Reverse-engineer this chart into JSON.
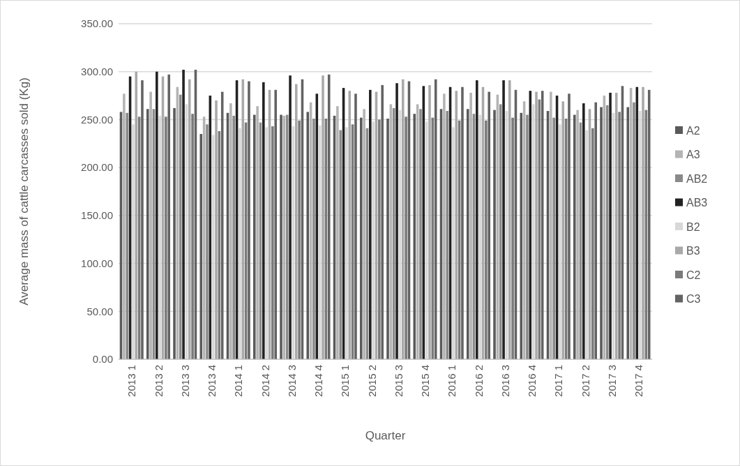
{
  "chart_data": {
    "type": "bar",
    "xlabel": "Quarter",
    "ylabel": "Average mass of cattle carcasses sold (Kg)",
    "categories": [
      "2013 1",
      "2013 2",
      "2013 3",
      "2013 4",
      "2014 1",
      "2014 2",
      "2014 3",
      "2014 4",
      "2015 1",
      "2015 2",
      "2015 3",
      "2015 4",
      "2016 1",
      "2016 2",
      "2016 3",
      "2016 4",
      "2017 1",
      "2017 2",
      "2017 3",
      "2017 4"
    ],
    "series": [
      {
        "name": "A2",
        "color": "#5a5a5a",
        "values": [
          258,
          261,
          262,
          235,
          257,
          255,
          255,
          258,
          254,
          252,
          251,
          256,
          261,
          261,
          260,
          257,
          259,
          255,
          263,
          263
        ]
      },
      {
        "name": "A3",
        "color": "#b4b4b4",
        "values": [
          277,
          279,
          284,
          253,
          267,
          264,
          254,
          268,
          264,
          261,
          266,
          266,
          277,
          278,
          276,
          269,
          279,
          260,
          275,
          283
        ]
      },
      {
        "name": "AB2",
        "color": "#8a8a8a",
        "values": [
          257,
          261,
          276,
          245,
          254,
          247,
          255,
          251,
          239,
          241,
          262,
          261,
          259,
          256,
          266,
          255,
          252,
          247,
          265,
          268
        ]
      },
      {
        "name": "AB3",
        "color": "#222222",
        "values": [
          295,
          300,
          302,
          275,
          291,
          289,
          296,
          277,
          283,
          281,
          288,
          285,
          284,
          291,
          291,
          280,
          275,
          267,
          278,
          284
        ]
      },
      {
        "name": "B2",
        "color": "#d8d8d8",
        "values": [
          245,
          254,
          266,
          234,
          241,
          242,
          243,
          244,
          242,
          248,
          260,
          248,
          242,
          255,
          259,
          266,
          245,
          239,
          257,
          259
        ]
      },
      {
        "name": "B3",
        "color": "#a9a9a9",
        "values": [
          300,
          295,
          292,
          270,
          292,
          281,
          287,
          296,
          280,
          279,
          292,
          286,
          280,
          284,
          291,
          279,
          269,
          261,
          278,
          284
        ]
      },
      {
        "name": "C2",
        "color": "#7a7a7a",
        "values": [
          253,
          253,
          256,
          238,
          247,
          243,
          249,
          251,
          245,
          250,
          253,
          252,
          249,
          249,
          252,
          271,
          251,
          241,
          258,
          260
        ]
      },
      {
        "name": "C3",
        "color": "#636363",
        "values": [
          291,
          297,
          302,
          279,
          290,
          281,
          292,
          297,
          277,
          286,
          290,
          292,
          284,
          279,
          281,
          280,
          277,
          268,
          285,
          281
        ]
      }
    ],
    "ylim": [
      0,
      350
    ],
    "yticks": [
      {
        "value": 0,
        "label": "0.00"
      },
      {
        "value": 50,
        "label": "50.00"
      },
      {
        "value": 100,
        "label": "100.00"
      },
      {
        "value": 150,
        "label": "150.00"
      },
      {
        "value": 200,
        "label": "200.00"
      },
      {
        "value": 250,
        "label": "250.00"
      },
      {
        "value": 300,
        "label": "300.00"
      },
      {
        "value": 350,
        "label": "350.00"
      }
    ],
    "grid": "y",
    "legend": "right"
  }
}
